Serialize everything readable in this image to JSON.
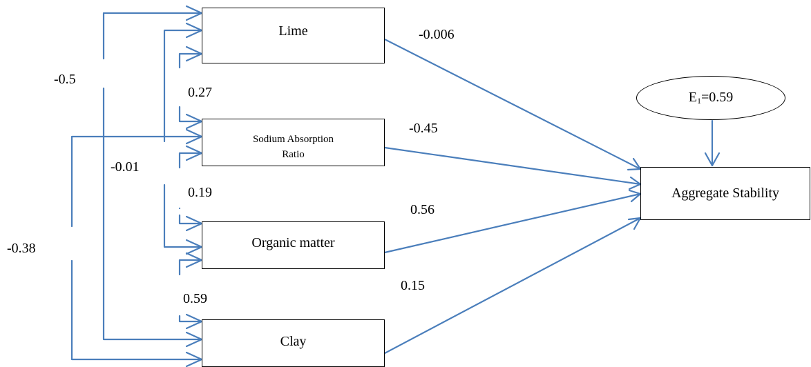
{
  "boxes": {
    "lime": "Lime",
    "sodium_line1": "Sodium Absorption",
    "sodium_line2": "Ratio",
    "organic": "Organic matter",
    "clay": "Clay",
    "aggregate": "Aggregate Stability"
  },
  "error_term": {
    "symbol": "E",
    "subscript": "1",
    "value": "=0.59"
  },
  "path_coefficients": {
    "lime": "-0.006",
    "sodium": "-0.45",
    "organic": "0.56",
    "clay": "0.15"
  },
  "correlations": {
    "lime_clay": "-0.5",
    "lime_sodium": "0.27",
    "sodium_clay": "-0.38",
    "lime_organic": "-0.01",
    "sodium_organic": "0.19",
    "organic_clay": "0.59"
  },
  "colors": {
    "line": "#4a7ebb",
    "text": "#000000"
  }
}
